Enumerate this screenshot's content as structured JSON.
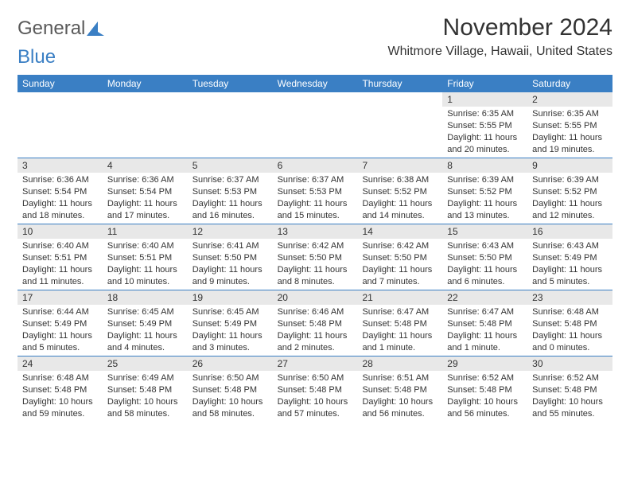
{
  "logo": {
    "text1": "General",
    "text2": "Blue"
  },
  "title": "November 2024",
  "location": "Whitmore Village, Hawaii, United States",
  "colors": {
    "header_bg": "#3a7fc4",
    "daynum_bg": "#e8e8e8",
    "text": "#333333",
    "rule": "#3a7fc4"
  },
  "weekdays": [
    "Sunday",
    "Monday",
    "Tuesday",
    "Wednesday",
    "Thursday",
    "Friday",
    "Saturday"
  ],
  "weeks": [
    [
      {
        "empty": true
      },
      {
        "empty": true
      },
      {
        "empty": true
      },
      {
        "empty": true
      },
      {
        "empty": true
      },
      {
        "n": "1",
        "sr": "Sunrise: 6:35 AM",
        "ss": "Sunset: 5:55 PM",
        "dl": "Daylight: 11 hours and 20 minutes."
      },
      {
        "n": "2",
        "sr": "Sunrise: 6:35 AM",
        "ss": "Sunset: 5:55 PM",
        "dl": "Daylight: 11 hours and 19 minutes."
      }
    ],
    [
      {
        "n": "3",
        "sr": "Sunrise: 6:36 AM",
        "ss": "Sunset: 5:54 PM",
        "dl": "Daylight: 11 hours and 18 minutes."
      },
      {
        "n": "4",
        "sr": "Sunrise: 6:36 AM",
        "ss": "Sunset: 5:54 PM",
        "dl": "Daylight: 11 hours and 17 minutes."
      },
      {
        "n": "5",
        "sr": "Sunrise: 6:37 AM",
        "ss": "Sunset: 5:53 PM",
        "dl": "Daylight: 11 hours and 16 minutes."
      },
      {
        "n": "6",
        "sr": "Sunrise: 6:37 AM",
        "ss": "Sunset: 5:53 PM",
        "dl": "Daylight: 11 hours and 15 minutes."
      },
      {
        "n": "7",
        "sr": "Sunrise: 6:38 AM",
        "ss": "Sunset: 5:52 PM",
        "dl": "Daylight: 11 hours and 14 minutes."
      },
      {
        "n": "8",
        "sr": "Sunrise: 6:39 AM",
        "ss": "Sunset: 5:52 PM",
        "dl": "Daylight: 11 hours and 13 minutes."
      },
      {
        "n": "9",
        "sr": "Sunrise: 6:39 AM",
        "ss": "Sunset: 5:52 PM",
        "dl": "Daylight: 11 hours and 12 minutes."
      }
    ],
    [
      {
        "n": "10",
        "sr": "Sunrise: 6:40 AM",
        "ss": "Sunset: 5:51 PM",
        "dl": "Daylight: 11 hours and 11 minutes."
      },
      {
        "n": "11",
        "sr": "Sunrise: 6:40 AM",
        "ss": "Sunset: 5:51 PM",
        "dl": "Daylight: 11 hours and 10 minutes."
      },
      {
        "n": "12",
        "sr": "Sunrise: 6:41 AM",
        "ss": "Sunset: 5:50 PM",
        "dl": "Daylight: 11 hours and 9 minutes."
      },
      {
        "n": "13",
        "sr": "Sunrise: 6:42 AM",
        "ss": "Sunset: 5:50 PM",
        "dl": "Daylight: 11 hours and 8 minutes."
      },
      {
        "n": "14",
        "sr": "Sunrise: 6:42 AM",
        "ss": "Sunset: 5:50 PM",
        "dl": "Daylight: 11 hours and 7 minutes."
      },
      {
        "n": "15",
        "sr": "Sunrise: 6:43 AM",
        "ss": "Sunset: 5:50 PM",
        "dl": "Daylight: 11 hours and 6 minutes."
      },
      {
        "n": "16",
        "sr": "Sunrise: 6:43 AM",
        "ss": "Sunset: 5:49 PM",
        "dl": "Daylight: 11 hours and 5 minutes."
      }
    ],
    [
      {
        "n": "17",
        "sr": "Sunrise: 6:44 AM",
        "ss": "Sunset: 5:49 PM",
        "dl": "Daylight: 11 hours and 5 minutes."
      },
      {
        "n": "18",
        "sr": "Sunrise: 6:45 AM",
        "ss": "Sunset: 5:49 PM",
        "dl": "Daylight: 11 hours and 4 minutes."
      },
      {
        "n": "19",
        "sr": "Sunrise: 6:45 AM",
        "ss": "Sunset: 5:49 PM",
        "dl": "Daylight: 11 hours and 3 minutes."
      },
      {
        "n": "20",
        "sr": "Sunrise: 6:46 AM",
        "ss": "Sunset: 5:48 PM",
        "dl": "Daylight: 11 hours and 2 minutes."
      },
      {
        "n": "21",
        "sr": "Sunrise: 6:47 AM",
        "ss": "Sunset: 5:48 PM",
        "dl": "Daylight: 11 hours and 1 minute."
      },
      {
        "n": "22",
        "sr": "Sunrise: 6:47 AM",
        "ss": "Sunset: 5:48 PM",
        "dl": "Daylight: 11 hours and 1 minute."
      },
      {
        "n": "23",
        "sr": "Sunrise: 6:48 AM",
        "ss": "Sunset: 5:48 PM",
        "dl": "Daylight: 11 hours and 0 minutes."
      }
    ],
    [
      {
        "n": "24",
        "sr": "Sunrise: 6:48 AM",
        "ss": "Sunset: 5:48 PM",
        "dl": "Daylight: 10 hours and 59 minutes."
      },
      {
        "n": "25",
        "sr": "Sunrise: 6:49 AM",
        "ss": "Sunset: 5:48 PM",
        "dl": "Daylight: 10 hours and 58 minutes."
      },
      {
        "n": "26",
        "sr": "Sunrise: 6:50 AM",
        "ss": "Sunset: 5:48 PM",
        "dl": "Daylight: 10 hours and 58 minutes."
      },
      {
        "n": "27",
        "sr": "Sunrise: 6:50 AM",
        "ss": "Sunset: 5:48 PM",
        "dl": "Daylight: 10 hours and 57 minutes."
      },
      {
        "n": "28",
        "sr": "Sunrise: 6:51 AM",
        "ss": "Sunset: 5:48 PM",
        "dl": "Daylight: 10 hours and 56 minutes."
      },
      {
        "n": "29",
        "sr": "Sunrise: 6:52 AM",
        "ss": "Sunset: 5:48 PM",
        "dl": "Daylight: 10 hours and 56 minutes."
      },
      {
        "n": "30",
        "sr": "Sunrise: 6:52 AM",
        "ss": "Sunset: 5:48 PM",
        "dl": "Daylight: 10 hours and 55 minutes."
      }
    ]
  ]
}
